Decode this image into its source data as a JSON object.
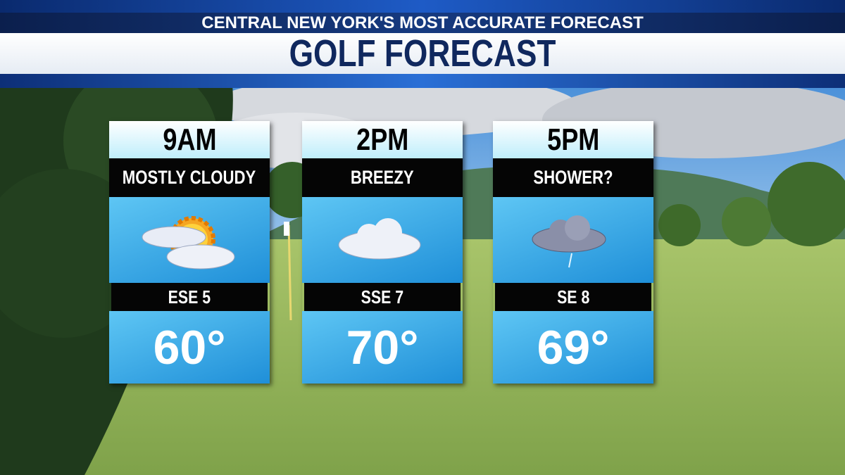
{
  "header": {
    "tagline": "CENTRAL NEW YORK'S MOST ACCURATE FORECAST",
    "title": "GOLF FORECAST"
  },
  "panels": [
    {
      "time": "9AM",
      "condition": "MOSTLY CLOUDY",
      "wind": "ESE 5",
      "temperature": "60°"
    },
    {
      "time": "2PM",
      "condition": "BREEZY",
      "wind": "SSE 7",
      "temperature": "70°"
    },
    {
      "time": "5PM",
      "condition": "SHOWER?",
      "wind": "SE 8",
      "temperature": "69°"
    }
  ]
}
